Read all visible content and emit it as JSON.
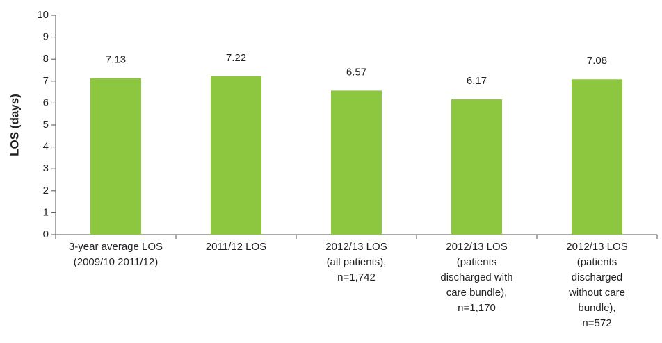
{
  "chart_data": {
    "type": "bar",
    "y_label": "LOS (days)",
    "categories": [
      [
        "3-year average LOS",
        "(2009/10 2011/12)"
      ],
      [
        "2011/12 LOS"
      ],
      [
        "2012/13 LOS",
        "(all patients),",
        "n=1,742"
      ],
      [
        "2012/13 LOS",
        "(patients",
        "discharged with",
        "care bundle),",
        "n=1,170"
      ],
      [
        "2012/13 LOS",
        "(patients",
        "discharged",
        "without care",
        "bundle),",
        "n=572"
      ]
    ],
    "values": [
      7.13,
      7.22,
      6.57,
      6.17,
      7.08
    ],
    "value_labels": [
      "7.13",
      "7.22",
      "6.57",
      "6.17",
      "7.08"
    ],
    "color": "#8dc63f",
    "ylim": [
      0,
      10
    ],
    "yticks": [
      0,
      1,
      2,
      3,
      4,
      5,
      6,
      7,
      8,
      9,
      10
    ]
  }
}
